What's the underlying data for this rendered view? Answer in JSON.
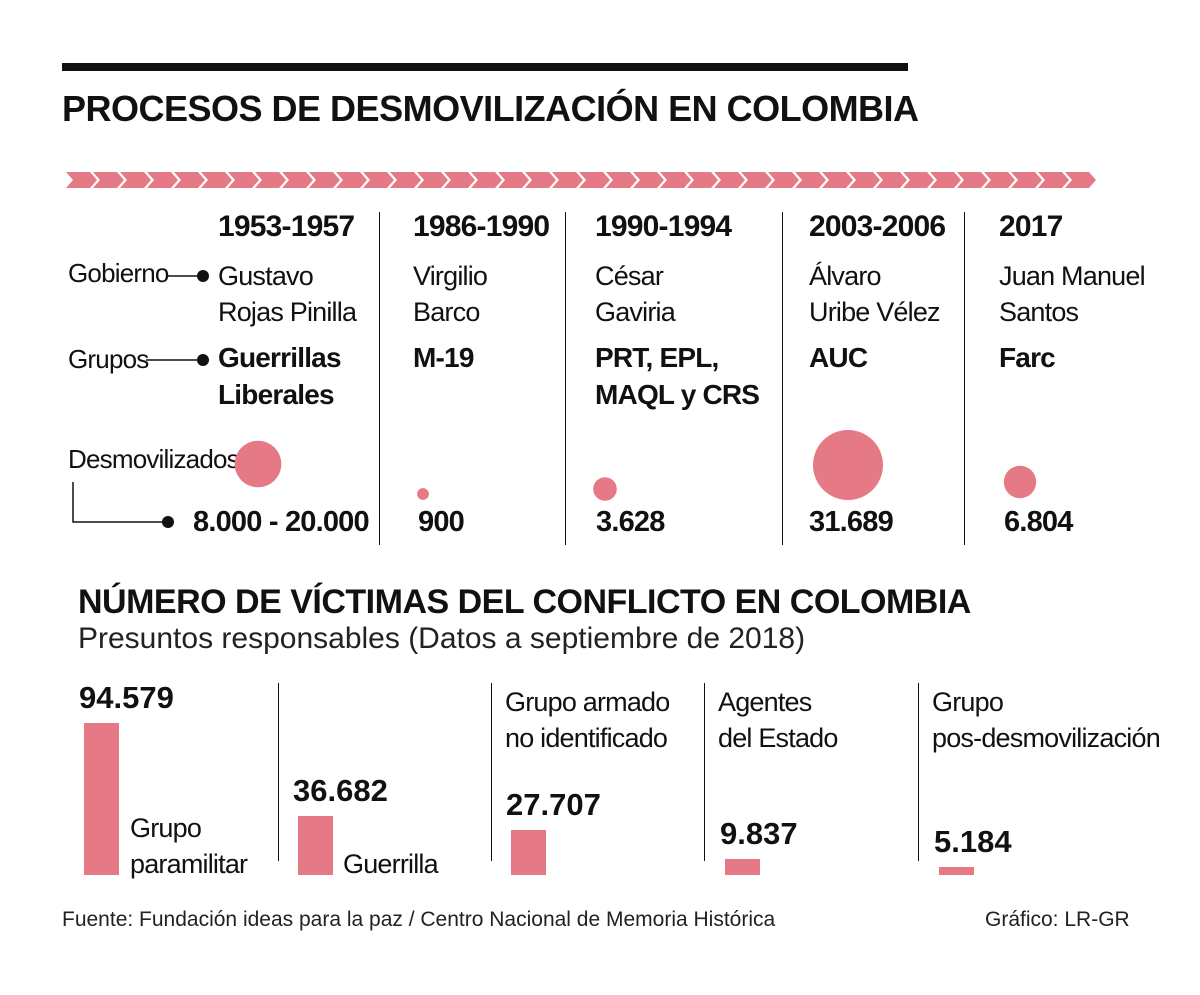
{
  "title": "PROCESOS DE DESMOVILIZACIÓN EN COLOMBIA",
  "row_labels": {
    "gobierno": "Gobierno",
    "grupos": "Grupos",
    "desmovilizados": "Desmovilizados"
  },
  "colors": {
    "accent": "#e57a86",
    "text": "#111111"
  },
  "processes": [
    {
      "years": "1953-1957",
      "government_line1": "Gustavo",
      "government_line2": "Rojas Pinilla",
      "group_line1": "Guerrillas",
      "group_line2": "Liberales",
      "demobilized_label": "8.000 - 20.000",
      "demobilized": 14000
    },
    {
      "years": "1986-1990",
      "government_line1": "Virgilio",
      "government_line2": "Barco",
      "group_line1": "M-19",
      "group_line2": "",
      "demobilized_label": "900",
      "demobilized": 900
    },
    {
      "years": "1990-1994",
      "government_line1": "César",
      "government_line2": "Gaviria",
      "group_line1": "PRT, EPL,",
      "group_line2": "MAQL y CRS",
      "demobilized_label": "3.628",
      "demobilized": 3628
    },
    {
      "years": "2003-2006",
      "government_line1": "Álvaro",
      "government_line2": "Uribe Vélez",
      "group_line1": "AUC",
      "group_line2": "",
      "demobilized_label": "31.689",
      "demobilized": 31689
    },
    {
      "years": "2017",
      "government_line1": "Juan Manuel",
      "government_line2": "Santos",
      "group_line1": "Farc",
      "group_line2": "",
      "demobilized_label": "6.804",
      "demobilized": 6804
    }
  ],
  "victims": {
    "title": "NÚMERO DE VÍCTIMAS DEL CONFLICTO EN COLOMBIA",
    "subtitle": "Presuntos responsables (Datos a septiembre de 2018)"
  },
  "chart_data": [
    {
      "type": "bubble",
      "title": "PROCESOS DE DESMOVILIZACIÓN EN COLOMBIA",
      "categories": [
        "1953-1957",
        "1986-1990",
        "1990-1994",
        "2003-2006",
        "2017"
      ],
      "values": [
        14000,
        900,
        3628,
        31689,
        6804
      ],
      "value_labels": [
        "8.000 - 20.000",
        "900",
        "3.628",
        "31.689",
        "6.804"
      ],
      "series_name": "Desmovilizados"
    },
    {
      "type": "bar",
      "title": "NÚMERO DE VÍCTIMAS DEL CONFLICTO EN COLOMBIA",
      "subtitle": "Presuntos responsables (Datos a septiembre de 2018)",
      "categories": [
        "Grupo paramilitar",
        "Guerrilla",
        "Grupo armado no identificado",
        "Agentes del Estado",
        "Grupo pos-desmovilización"
      ],
      "values": [
        94579,
        36682,
        27707,
        9837,
        5184
      ],
      "value_labels": [
        "94.579",
        "36.682",
        "27.707",
        "9.837",
        "5.184"
      ],
      "label_lines": [
        [
          "Grupo",
          "paramilitar"
        ],
        [
          "Guerrilla",
          ""
        ],
        [
          "Grupo armado",
          "no identificado"
        ],
        [
          "Agentes",
          "del Estado"
        ],
        [
          "Grupo",
          "pos-desmovilización"
        ]
      ],
      "ylim": [
        0,
        94579
      ]
    }
  ],
  "footer": {
    "source": "Fuente: Fundación ideas para la paz / Centro Nacional de Memoria Histórica",
    "credit": "Gráfico: LR-GR"
  }
}
